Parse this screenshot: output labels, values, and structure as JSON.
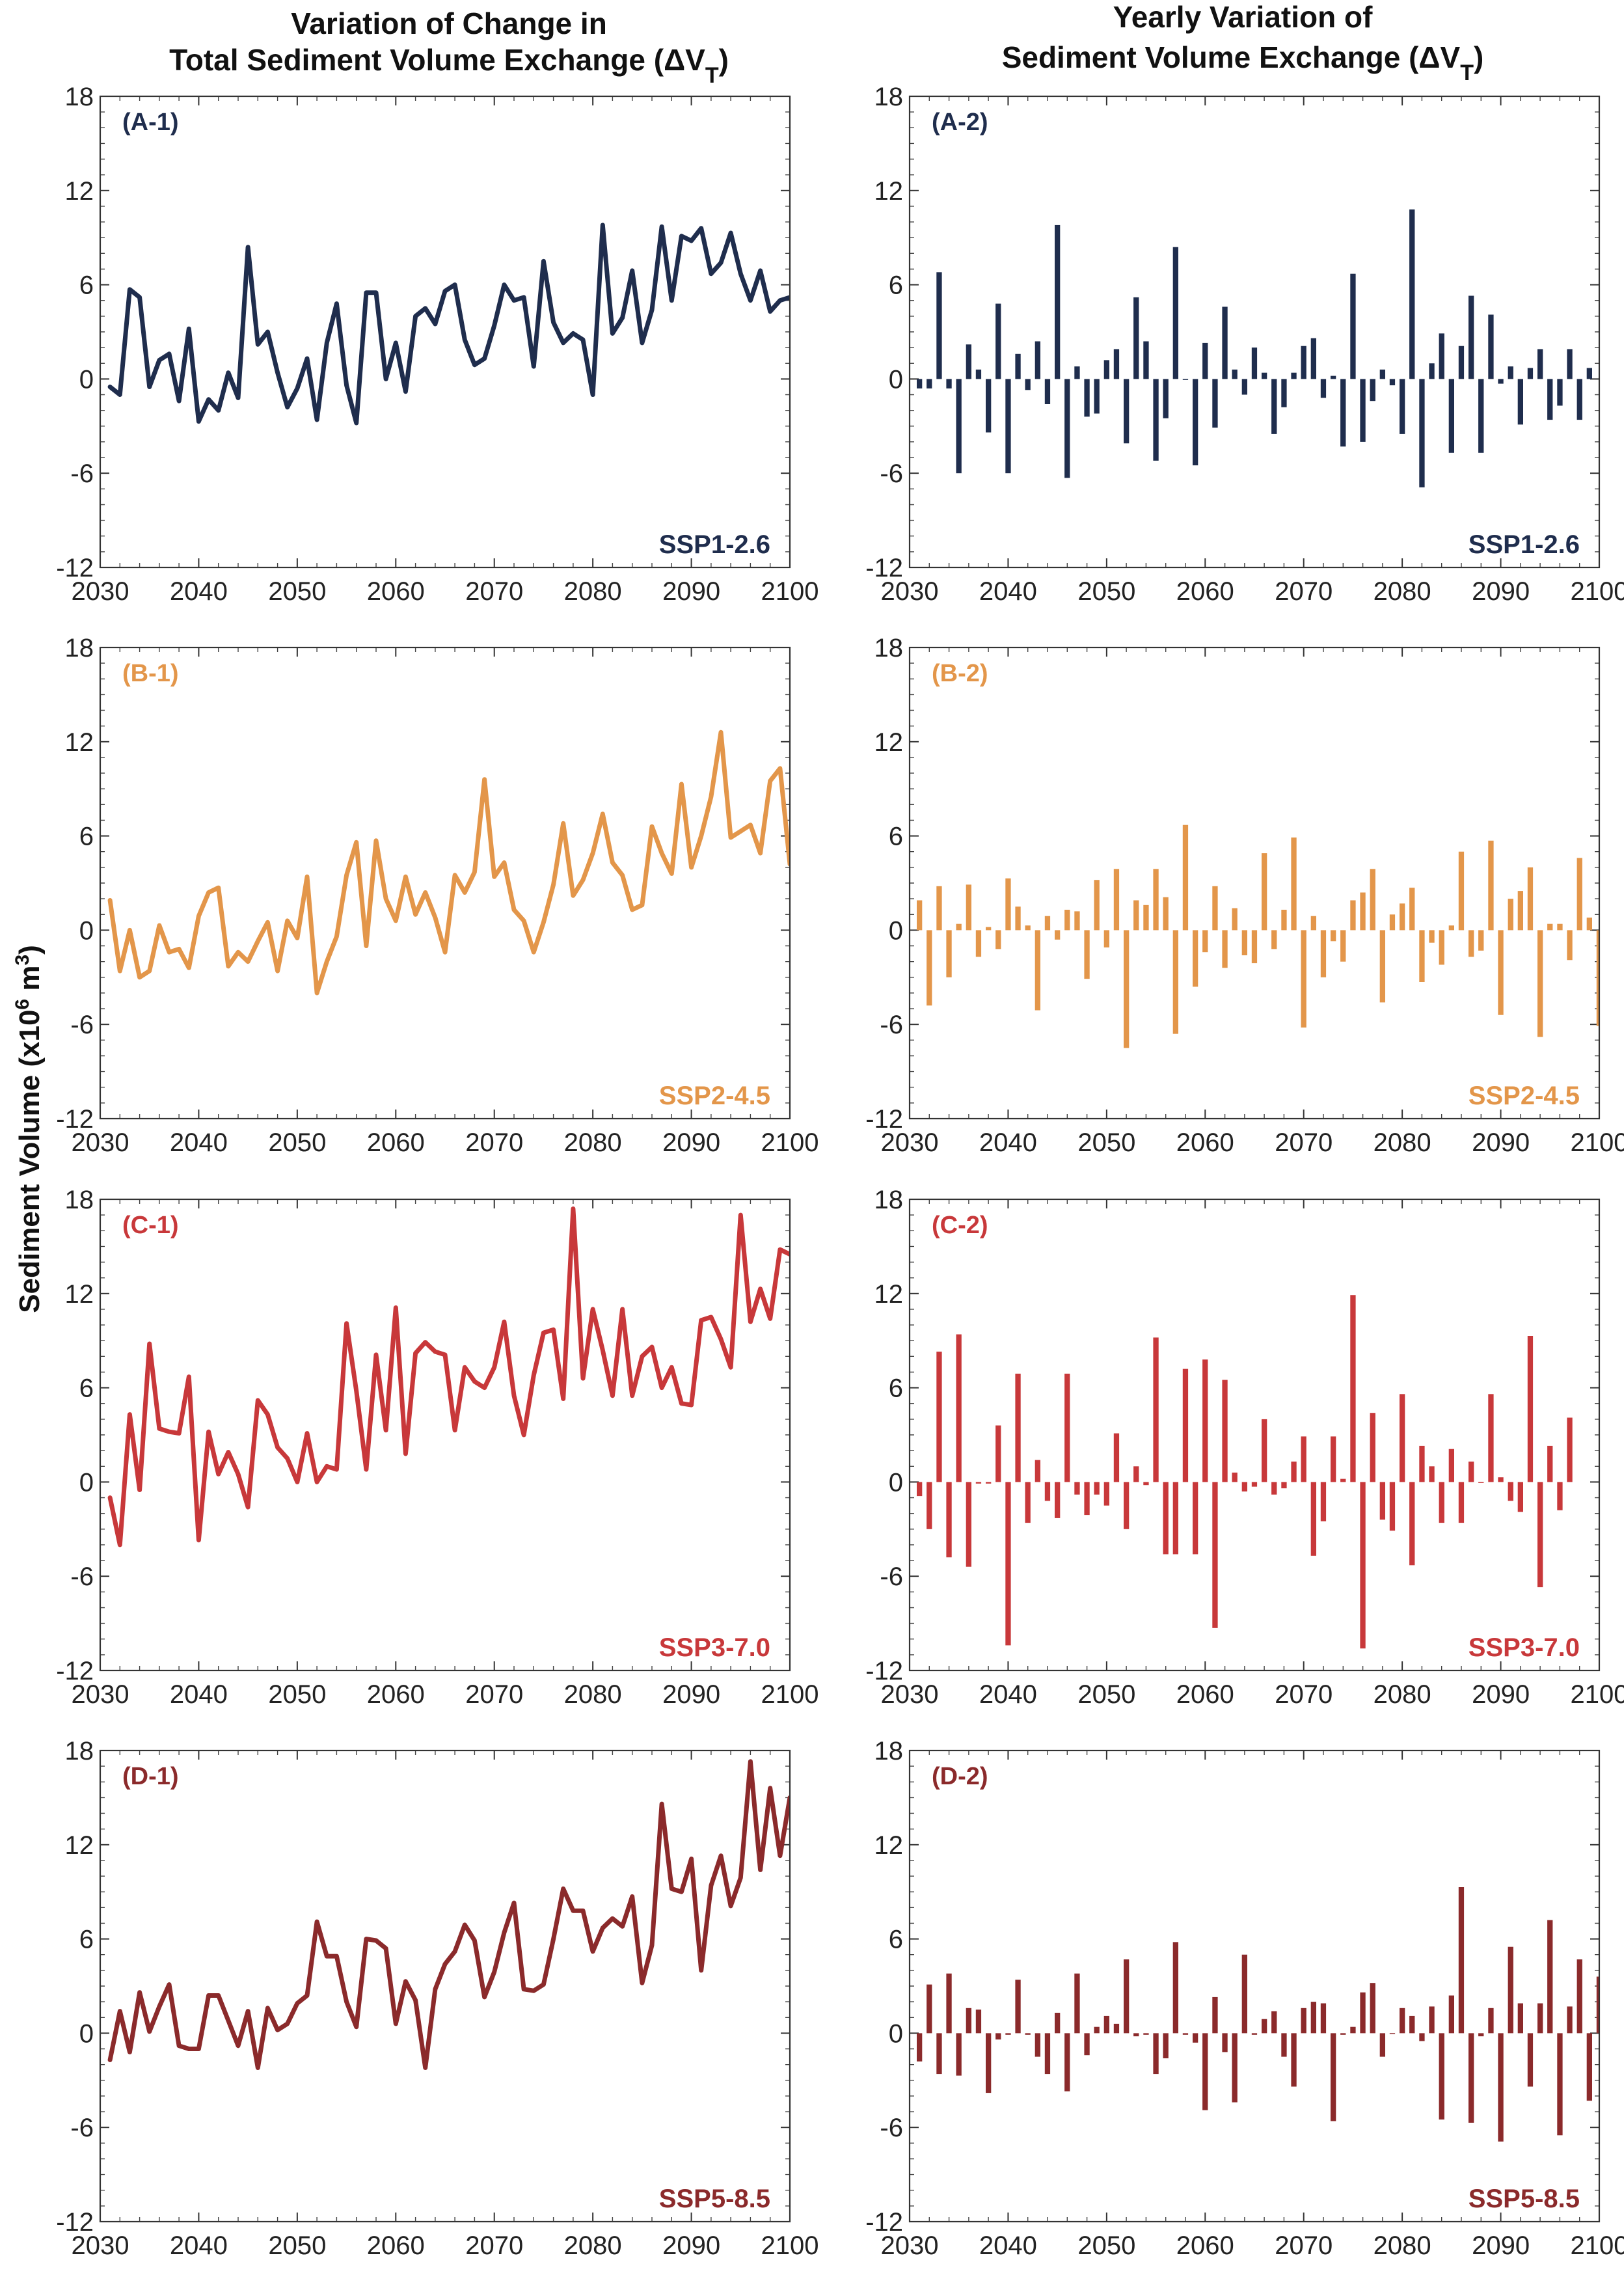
{
  "figure": {
    "left_title": [
      "Variation of Change in",
      "Total Sediment Volume Exchange (ΔV",
      "T",
      ")"
    ],
    "right_title": [
      "Yearly Variation of",
      "Sediment Volume Exchange (ΔV",
      "T",
      ")"
    ],
    "ylabel": [
      "Sediment Volume (x10",
      "6",
      " m",
      "3",
      ")"
    ]
  },
  "chart_data": [
    {
      "type": "line",
      "panel": "(A-1)",
      "scenario": "SSP1-2.6",
      "color": "#1f2d4d",
      "xlim": [
        2030,
        2100
      ],
      "ylim": [
        -12,
        18
      ],
      "xticks": [
        2030,
        2040,
        2050,
        2060,
        2070,
        2080,
        2090,
        2100
      ],
      "yticks": [
        18,
        12,
        6,
        0,
        -6,
        -12
      ],
      "x_start": 2031,
      "values": [
        -0.5,
        -1.0,
        5.7,
        5.2,
        -0.5,
        1.2,
        1.6,
        -1.4,
        3.2,
        -2.7,
        -1.3,
        -2.0,
        0.4,
        -1.2,
        8.4,
        2.2,
        3.0,
        0.4,
        -1.8,
        -0.6,
        1.3,
        -2.6,
        2.3,
        4.8,
        -0.4,
        -2.8,
        5.5,
        5.5,
        0.0,
        2.3,
        -0.8,
        4.0,
        4.5,
        3.5,
        5.6,
        6.0,
        2.5,
        0.9,
        1.3,
        3.4,
        6.0,
        5.0,
        5.2,
        0.8,
        7.5,
        3.6,
        2.3,
        2.9,
        2.5,
        -1.0,
        9.8,
        2.9,
        3.9,
        6.9,
        2.3,
        4.4,
        9.7,
        5.0,
        9.1,
        8.8,
        9.6,
        6.7,
        7.4,
        9.3,
        6.7,
        5.0,
        6.9,
        4.3,
        5.0,
        5.2
      ]
    },
    {
      "type": "bar",
      "panel": "(A-2)",
      "scenario": "SSP1-2.6",
      "color": "#1f2d4d",
      "xlim": [
        2030,
        2100
      ],
      "ylim": [
        -12,
        18
      ],
      "xticks": [
        2030,
        2040,
        2050,
        2060,
        2070,
        2080,
        2090,
        2100
      ],
      "yticks": [
        18,
        12,
        6,
        0,
        -6,
        -12
      ],
      "x_start": 2031,
      "values": [
        -0.6,
        -0.6,
        6.8,
        -0.6,
        -6.0,
        2.2,
        0.6,
        -3.4,
        4.8,
        -6.0,
        1.6,
        -0.7,
        2.4,
        -1.6,
        9.8,
        -6.3,
        0.8,
        -2.4,
        -2.2,
        1.2,
        1.9,
        -4.1,
        5.2,
        2.4,
        -5.2,
        -2.5,
        8.4,
        0.0,
        -5.5,
        2.3,
        -3.1,
        4.6,
        0.6,
        -1.0,
        2.0,
        0.4,
        -3.5,
        -1.8,
        0.4,
        2.1,
        2.6,
        -1.2,
        0.2,
        -4.3,
        6.7,
        -4.0,
        -1.4,
        0.6,
        -0.4,
        -3.5,
        10.8,
        -6.9,
        1.0,
        2.9,
        -4.7,
        2.1,
        5.3,
        -4.7,
        4.1,
        -0.3,
        0.8,
        -2.9,
        0.7,
        1.9,
        -2.6,
        -1.7,
        1.9,
        -2.6,
        0.7
      ]
    },
    {
      "type": "line",
      "panel": "(B-1)",
      "scenario": "SSP2-4.5",
      "color": "#e3964a",
      "xlim": [
        2030,
        2100
      ],
      "ylim": [
        -12,
        18
      ],
      "xticks": [
        2030,
        2040,
        2050,
        2060,
        2070,
        2080,
        2090,
        2100
      ],
      "yticks": [
        18,
        12,
        6,
        0,
        -6,
        -12
      ],
      "x_start": 2031,
      "values": [
        1.9,
        -2.6,
        0.0,
        -3.0,
        -2.6,
        0.3,
        -1.4,
        -1.2,
        -2.4,
        0.9,
        2.4,
        2.7,
        -2.3,
        -1.4,
        -2.0,
        -0.7,
        0.5,
        -2.6,
        0.6,
        -0.5,
        3.4,
        -4.0,
        -2.0,
        -0.4,
        3.5,
        5.6,
        -1.0,
        5.7,
        2.0,
        0.6,
        3.4,
        1.0,
        2.4,
        0.8,
        -1.4,
        3.5,
        2.4,
        3.7,
        9.6,
        3.4,
        4.3,
        1.3,
        0.6,
        -1.4,
        0.5,
        2.9,
        6.8,
        2.2,
        3.2,
        4.9,
        7.4,
        4.3,
        3.5,
        1.3,
        1.6,
        6.6,
        4.9,
        3.6,
        9.3,
        4.0,
        6.0,
        8.5,
        12.6,
        5.9,
        6.3,
        6.7,
        4.9,
        9.5,
        10.3,
        4.2
      ]
    },
    {
      "type": "bar",
      "panel": "(B-2)",
      "scenario": "SSP2-4.5",
      "color": "#e3964a",
      "xlim": [
        2030,
        2100
      ],
      "ylim": [
        -12,
        18
      ],
      "xticks": [
        2030,
        2040,
        2050,
        2060,
        2070,
        2080,
        2090,
        2100
      ],
      "yticks": [
        18,
        12,
        6,
        0,
        -6,
        -12
      ],
      "x_start": 2031,
      "values": [
        1.9,
        -4.8,
        2.8,
        -3.0,
        0.4,
        2.9,
        -1.7,
        0.2,
        -1.2,
        3.3,
        1.5,
        0.3,
        -5.1,
        0.9,
        -0.6,
        1.3,
        1.2,
        -3.1,
        3.2,
        -1.1,
        3.9,
        -7.5,
        1.9,
        1.6,
        3.9,
        2.1,
        -6.6,
        6.7,
        -3.6,
        -1.4,
        2.8,
        -2.4,
        1.4,
        -1.6,
        -2.1,
        4.9,
        -1.2,
        1.3,
        5.9,
        -6.2,
        0.9,
        -3.0,
        -0.7,
        -2.0,
        1.9,
        2.4,
        3.9,
        -4.6,
        1.0,
        1.7,
        2.7,
        -3.3,
        -0.8,
        -2.2,
        0.3,
        5.0,
        -1.7,
        -1.3,
        5.7,
        -5.4,
        2.0,
        2.5,
        4.0,
        -6.8,
        0.4,
        0.4,
        -1.9,
        4.6,
        0.8,
        -6.1
      ]
    },
    {
      "type": "line",
      "panel": "(C-1)",
      "scenario": "SSP3-7.0",
      "color": "#c8383a",
      "xlim": [
        2030,
        2100
      ],
      "ylim": [
        -12,
        18
      ],
      "xticks": [
        2030,
        2040,
        2050,
        2060,
        2070,
        2080,
        2090,
        2100
      ],
      "yticks": [
        18,
        12,
        6,
        0,
        -6,
        -12
      ],
      "x_start": 2031,
      "values": [
        -1.0,
        -4.0,
        4.3,
        -0.5,
        8.8,
        3.4,
        3.2,
        3.1,
        6.7,
        -3.7,
        3.2,
        0.5,
        1.9,
        0.5,
        -1.6,
        5.2,
        4.3,
        2.2,
        1.5,
        0.0,
        3.1,
        0.0,
        1.0,
        0.8,
        10.1,
        5.8,
        0.8,
        8.1,
        3.3,
        11.1,
        1.8,
        8.2,
        8.9,
        8.3,
        8.1,
        3.3,
        7.3,
        6.4,
        6.0,
        7.3,
        10.2,
        5.5,
        3.0,
        6.8,
        9.5,
        9.7,
        5.3,
        17.4,
        6.6,
        11.0,
        8.4,
        5.5,
        11.0,
        5.5,
        8.0,
        8.6,
        6.0,
        7.3,
        5.0,
        4.9,
        10.3,
        10.5,
        9.1,
        7.3,
        17.0,
        10.2,
        12.3,
        10.4,
        14.8,
        14.5
      ]
    },
    {
      "type": "bar",
      "panel": "(C-2)",
      "scenario": "SSP3-7.0",
      "color": "#c8383a",
      "xlim": [
        2030,
        2100
      ],
      "ylim": [
        -12,
        18
      ],
      "xticks": [
        2030,
        2040,
        2050,
        2060,
        2070,
        2080,
        2090,
        2100
      ],
      "yticks": [
        18,
        12,
        6,
        0,
        -6,
        -12
      ],
      "x_start": 2031,
      "values": [
        -0.9,
        -3.0,
        8.3,
        -4.8,
        9.4,
        -5.4,
        -0.1,
        -0.1,
        3.6,
        -10.4,
        6.9,
        -2.6,
        1.4,
        -1.2,
        -2.3,
        6.9,
        -0.8,
        -2.1,
        -0.8,
        -1.5,
        3.1,
        -3.0,
        1.0,
        -0.2,
        9.2,
        -4.6,
        -4.6,
        7.2,
        -4.6,
        7.8,
        -9.3,
        6.5,
        0.6,
        -0.6,
        -0.3,
        4.0,
        -0.8,
        -0.4,
        1.3,
        2.9,
        -4.7,
        -2.5,
        2.9,
        0.2,
        11.9,
        -10.6,
        4.4,
        -2.4,
        -3.1,
        5.6,
        -5.3,
        2.3,
        1.0,
        -2.6,
        2.1,
        -2.6,
        1.3,
        0.0,
        5.6,
        0.3,
        -1.2,
        -1.9,
        9.3,
        -6.7,
        2.3,
        -1.8,
        4.1
      ]
    },
    {
      "type": "line",
      "panel": "(D-1)",
      "scenario": "SSP5-8.5",
      "color": "#8b2a2b",
      "xlim": [
        2030,
        2100
      ],
      "ylim": [
        -12,
        18
      ],
      "xticks": [
        2030,
        2040,
        2050,
        2060,
        2070,
        2080,
        2090,
        2100
      ],
      "yticks": [
        18,
        12,
        6,
        0,
        -6,
        -12
      ],
      "x_start": 2031,
      "values": [
        -1.7,
        1.4,
        -1.2,
        2.6,
        0.1,
        1.7,
        3.1,
        -0.8,
        -1.0,
        -1.0,
        2.4,
        2.4,
        0.8,
        -0.8,
        1.4,
        -2.2,
        1.6,
        0.2,
        0.6,
        1.9,
        2.4,
        7.1,
        4.9,
        4.9,
        2.0,
        0.4,
        6.0,
        5.9,
        5.4,
        0.6,
        3.3,
        2.1,
        -2.2,
        2.8,
        4.4,
        5.2,
        6.9,
        5.9,
        2.3,
        3.9,
        6.4,
        8.3,
        2.8,
        2.7,
        3.1,
        6.0,
        9.2,
        7.8,
        7.8,
        5.2,
        6.7,
        7.3,
        6.8,
        8.7,
        3.2,
        5.6,
        14.6,
        9.2,
        9.0,
        11.1,
        4.0,
        9.4,
        11.3,
        8.1,
        9.9,
        17.3,
        10.4,
        15.6,
        11.3,
        15.0
      ]
    },
    {
      "type": "bar",
      "panel": "(D-2)",
      "scenario": "SSP5-8.5",
      "color": "#8b2a2b",
      "xlim": [
        2030,
        2100
      ],
      "ylim": [
        -12,
        18
      ],
      "xticks": [
        2030,
        2040,
        2050,
        2060,
        2070,
        2080,
        2090,
        2100
      ],
      "yticks": [
        18,
        12,
        6,
        0,
        -6,
        -12
      ],
      "x_start": 2031,
      "values": [
        -1.8,
        3.1,
        -2.6,
        3.8,
        -2.7,
        1.6,
        1.5,
        -3.8,
        -0.4,
        -0.1,
        3.4,
        -0.1,
        -1.5,
        -2.6,
        1.3,
        -3.7,
        3.8,
        -1.4,
        0.4,
        1.1,
        0.6,
        4.7,
        -0.2,
        -0.1,
        -2.6,
        -1.6,
        5.8,
        -0.1,
        -0.6,
        -4.9,
        2.3,
        -1.2,
        -4.4,
        5.0,
        -0.1,
        0.9,
        1.4,
        -1.5,
        -3.4,
        1.6,
        2.0,
        1.9,
        -5.6,
        -0.1,
        0.4,
        2.6,
        3.2,
        -1.5,
        0.0,
        1.6,
        1.1,
        -0.5,
        1.7,
        -5.5,
        2.4,
        9.3,
        -5.7,
        -0.2,
        1.6,
        -6.9,
        5.5,
        1.9,
        -3.4,
        1.9,
        7.2,
        -6.5,
        1.7,
        4.7,
        -4.3,
        3.6
      ]
    }
  ]
}
